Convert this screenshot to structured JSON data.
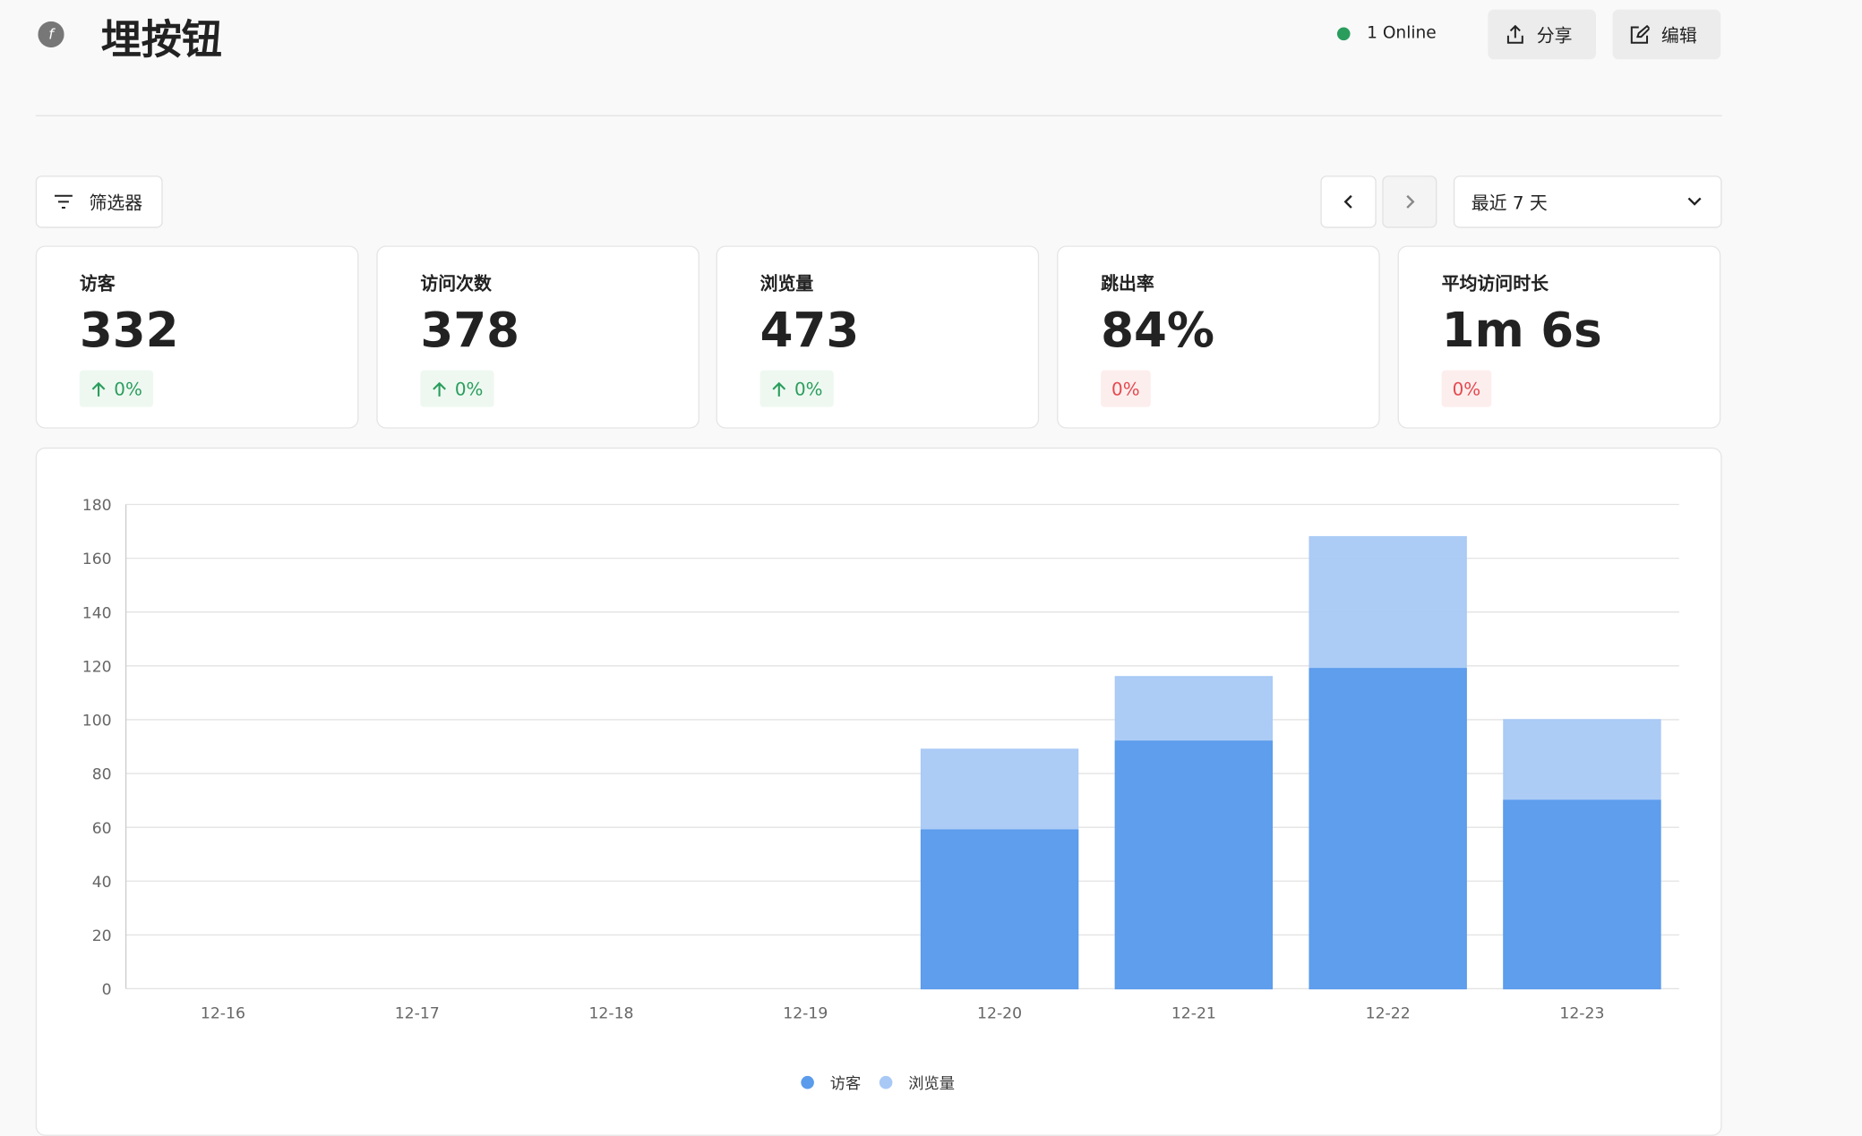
{
  "header": {
    "title": "埋按钮",
    "online": "1 Online",
    "share": "分享",
    "edit": "编辑"
  },
  "toolbar": {
    "filter": "筛选器",
    "range": "最近 7 天"
  },
  "metrics": [
    {
      "label": "访客",
      "value": "332",
      "change": "0%"
    },
    {
      "label": "访问次数",
      "value": "378",
      "change": "0%"
    },
    {
      "label": "浏览量",
      "value": "473",
      "change": "0%"
    },
    {
      "label": "跳出率",
      "value": "84%",
      "change": "0%"
    },
    {
      "label": "平均访问时长",
      "value": "1m 6s",
      "change": "0%"
    }
  ],
  "chart_data": {
    "type": "bar",
    "categories": [
      "12-16",
      "12-17",
      "12-18",
      "12-19",
      "12-20",
      "12-21",
      "12-22",
      "12-23"
    ],
    "series": [
      {
        "name": "访客",
        "color": "#5b9bec",
        "values": [
          0,
          0,
          0,
          0,
          59,
          92,
          119,
          70
        ]
      },
      {
        "name": "浏览量",
        "color": "#a8c9f6",
        "values": [
          0,
          0,
          0,
          0,
          89,
          116,
          168,
          100
        ]
      }
    ],
    "ylim": [
      0,
      180
    ],
    "yticks": [
      0,
      20,
      40,
      60,
      80,
      100,
      120,
      140,
      160,
      180
    ],
    "grid": true
  }
}
